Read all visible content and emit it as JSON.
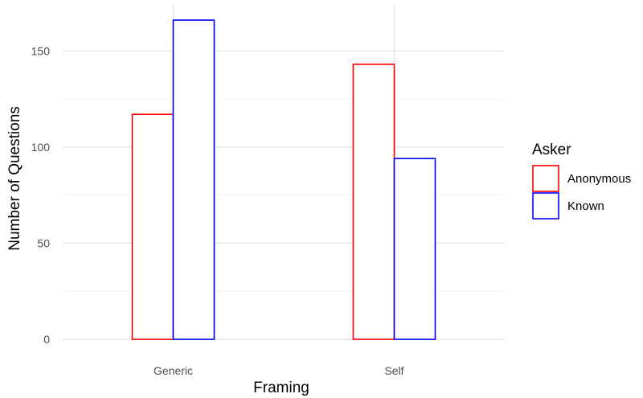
{
  "chart_data": {
    "type": "bar",
    "xlabel": "Framing",
    "ylabel": "Number of Questions",
    "categories": [
      "Generic",
      "Self"
    ],
    "series": [
      {
        "name": "Anonymous",
        "values": [
          117,
          143
        ],
        "color": "#ff0000"
      },
      {
        "name": "Known",
        "values": [
          166,
          94
        ],
        "color": "#0000ff"
      }
    ],
    "ylim": [
      0,
      166
    ],
    "yticks": [
      "0",
      "50",
      "100",
      "150"
    ],
    "ytick_values": [
      0,
      50,
      100,
      150
    ],
    "grid": true,
    "legend": {
      "title": "Asker",
      "placement": "right"
    }
  }
}
